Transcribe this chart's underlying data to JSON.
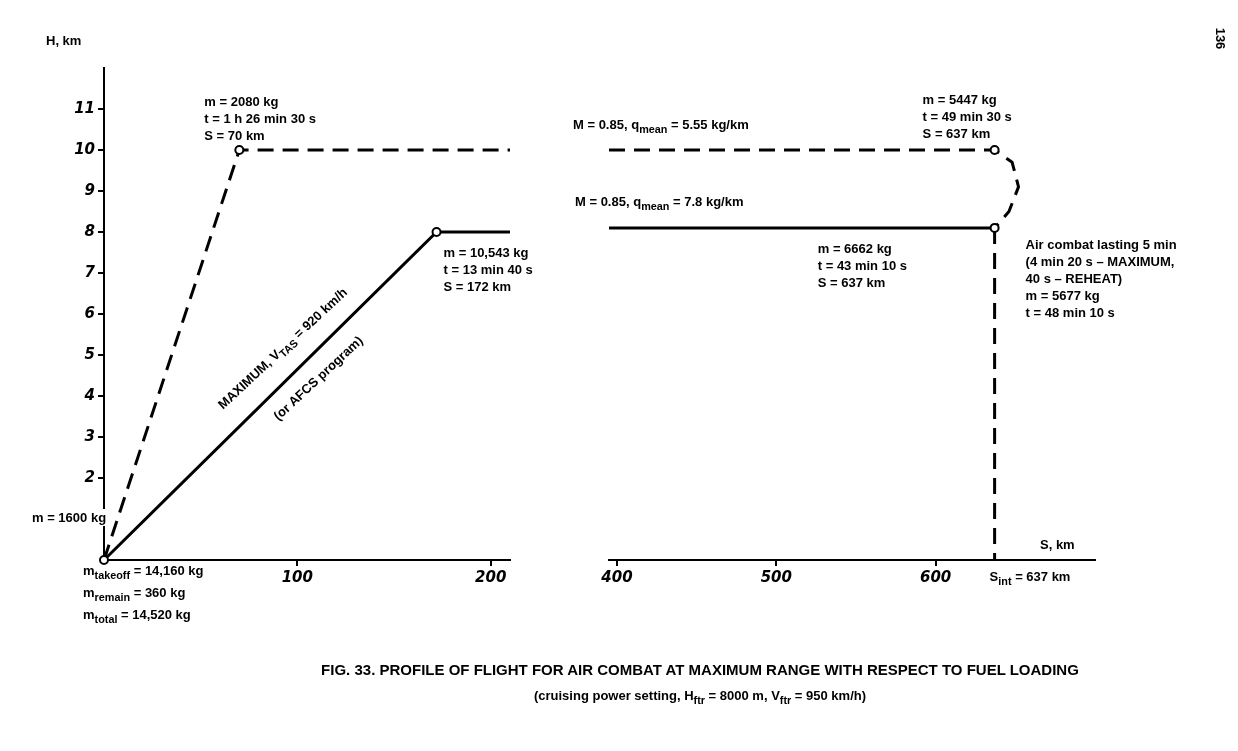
{
  "chart_data": [
    {
      "type": "line",
      "ylabel": "H, km",
      "xlim": [
        0,
        210
      ],
      "xticks": [
        100,
        200
      ],
      "ylim": [
        0,
        12
      ],
      "yticks": [
        2,
        3,
        4,
        5,
        6,
        7,
        8,
        9,
        10,
        11
      ],
      "grid": false,
      "legend": false,
      "marker": "none",
      "series": [
        {
          "color": "#000000",
          "line_style": "dashed",
          "x": [
            0,
            70,
            210
          ],
          "values": [
            0,
            10,
            10
          ]
        },
        {
          "color": "#000000",
          "line_style": "solid",
          "x": [
            0,
            172,
            210
          ],
          "values": [
            0,
            8,
            8
          ]
        },
        {
          "type": "scatter",
          "marker": "circle",
          "color": "#000000",
          "x": [
            0,
            70,
            172
          ],
          "values": [
            0,
            10,
            8
          ]
        }
      ],
      "annotations": [
        {
          "text": "m = 2080 kg\nt = 1 h 26 min 30 s\nS = 70 km",
          "x": 70,
          "y": 10
        },
        {
          "text": "m = 10,543 kg\nt = 13 min 40 s\nS = 172 km",
          "x": 172,
          "y": 8
        },
        {
          "text": "m = 1600 kg",
          "x": 0,
          "y": 0
        },
        "m$_{takeoff}$ = 14,160 kg",
        "m$_{remain}$ = 360 kg",
        "m$_{total}$ = 14,520 kg",
        "MAXIMUM, V$_{TAS}$ = 920 km/h",
        "(or AFCS program)",
        "136"
      ]
    },
    {
      "type": "line",
      "xlabel": "S, km",
      "xlim": [
        395,
        700
      ],
      "xticks": [
        400,
        500,
        600
      ],
      "ylim": [
        0,
        11
      ],
      "yticks": [
        2,
        3,
        4,
        5,
        6,
        7,
        8,
        9,
        10,
        11
      ],
      "tick_labels": "x",
      "grid": false,
      "legend": false,
      "marker": "none",
      "series": [
        {
          "color": "#000000",
          "line_style": "dashed",
          "x": [
            395,
            637,
            648,
            652,
            646,
            637
          ],
          "values": [
            10,
            10,
            9.7,
            9.1,
            8.5,
            8.1
          ]
        },
        {
          "color": "#000000",
          "line_style": "solid",
          "x": [
            395,
            637
          ],
          "values": [
            8.1,
            8.1
          ]
        },
        {
          "color": "#000000",
          "line_style": "dashed",
          "x": [
            637,
            637
          ],
          "values": [
            8.1,
            0
          ]
        },
        {
          "type": "scatter",
          "marker": "circle",
          "color": "#000000",
          "x": [
            637,
            637
          ],
          "values": [
            10,
            8.1
          ]
        }
      ],
      "annotations": [
        "M = 0.85, q$_{mean}$ = 5.55 kg/km",
        "M = 0.85, q$_{mean}$ = 7.8 kg/km",
        {
          "text": "m = 5447 kg\nt = 49 min 30 s\nS = 637 km",
          "x": 637,
          "y": 10
        },
        {
          "text": "m = 6662 kg\nt = 43 min 10 s\nS = 637 km",
          "x": 526,
          "y": 8.1
        },
        {
          "text": "Air combat lasting 5 min\n(4 min 20 s – MAXIMUM,\n40 s – REHEAT)\nm = 5677 kg\nt = 48 min 10 s",
          "x": 637,
          "y": 8.1
        },
        {
          "text": "S$_{int}$ = 637 km",
          "x": 637,
          "y": 0
        }
      ]
    },
    {
      "type": "other",
      "title": "FIG. 33. PROFILE OF FLIGHT FOR AIR COMBAT AT MAXIMUM RANGE WITH RESPECT TO FUEL LOADING",
      "subtitle": "(cruising power setting, H$_{ftr}$ = 8000 m, V$_{ftr}$ = 950 km/h)"
    }
  ]
}
